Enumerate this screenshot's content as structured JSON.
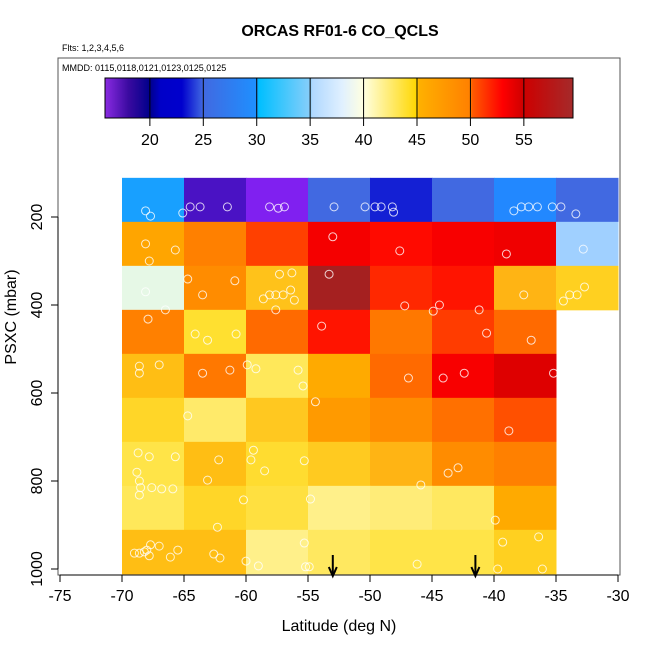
{
  "chart_data": {
    "type": "heatmap",
    "title": "ORCAS RF01-6 CO_QCLS",
    "subtitle_flights": "Flts: 1,2,3,4,5,6",
    "subtitle_dates": "MMDD: 0115,0118,0121,0123,0125,0125",
    "xlabel": "Latitude (deg N)",
    "ylabel": "PSXC (mbar)",
    "xlim": [
      -75,
      -30
    ],
    "ylim": [
      1013,
      -162
    ],
    "xticks": [
      "-75",
      "-70",
      "-65",
      "-60",
      "-55",
      "-50",
      "-45",
      "-40",
      "-35",
      "-30"
    ],
    "xtick_values": [
      -75,
      -70,
      -65,
      -60,
      -55,
      -50,
      -45,
      -40,
      -35,
      -30
    ],
    "yticks": [
      "200",
      "400",
      "600",
      "800",
      "1000"
    ],
    "ytick_values": [
      200,
      400,
      600,
      800,
      1000
    ],
    "lat_edges": [
      -70,
      -65,
      -60,
      -55,
      -50,
      -45,
      -40,
      -35,
      -30
    ],
    "p_edges": [
      111,
      211,
      311,
      411,
      511,
      611,
      711,
      811,
      911,
      1011
    ],
    "values": [
      [
        30,
        18,
        16,
        25,
        22,
        25,
        29,
        25
      ],
      [
        45.5,
        49,
        51,
        53.5,
        53,
        53.5,
        54,
        36
      ],
      [
        39,
        48,
        45.5,
        59,
        52,
        52.5,
        46,
        44.5
      ],
      [
        49,
        43.5,
        50,
        52.5,
        49.5,
        51.5,
        50,
        null
      ],
      [
        46,
        49.5,
        42.5,
        47,
        50,
        53.5,
        55.5,
        null
      ],
      [
        44.5,
        42,
        45.2,
        48,
        48.5,
        49.7,
        50.8,
        null
      ],
      [
        43.5,
        46,
        44,
        45,
        46.5,
        48.5,
        49,
        null
      ],
      [
        43,
        44.5,
        43.5,
        41.5,
        42,
        42.5,
        47,
        null
      ],
      [
        46,
        46,
        41.5,
        42.5,
        43,
        43,
        44.5,
        null
      ]
    ],
    "cell_colors": [
      [
        "#18a0ff",
        "#4a12c4",
        "#8020f0",
        "#4169e1",
        "#1420d4",
        "#4169e1",
        "#2288ff",
        "#4169e1"
      ],
      [
        "#ffa500",
        "#ff8000",
        "#ff4000",
        "#f50000",
        "#ff0a00",
        "#f80000",
        "#f00000",
        "#a0d0ff"
      ],
      [
        "#e6f8e6",
        "#ff8c00",
        "#ffc21a",
        "#a52020",
        "#ff2800",
        "#ff1400",
        "#ffb414",
        "#ffd020"
      ],
      [
        "#ff8000",
        "#ffe030",
        "#ff6a00",
        "#ff1400",
        "#ff7800",
        "#ff3c00",
        "#ff6a00",
        null
      ],
      [
        "#ffbe14",
        "#ff7800",
        "#ffe85a",
        "#ffaa00",
        "#ff6a00",
        "#f80000",
        "#de0000",
        null
      ],
      [
        "#ffd628",
        "#ffea6a",
        "#ffc820",
        "#ff9a00",
        "#ff8c00",
        "#ff7000",
        "#ff5000",
        null
      ],
      [
        "#ffe448",
        "#ffbe14",
        "#ffdc30",
        "#ffca20",
        "#ffb414",
        "#ff8c00",
        "#ff8000",
        null
      ],
      [
        "#ffe85a",
        "#ffd628",
        "#ffe040",
        "#fff08a",
        "#ffec78",
        "#ffe860",
        "#ffaa00",
        null
      ],
      [
        "#ffbe14",
        "#ffbe14",
        "#fff08a",
        "#ffe860",
        "#ffe448",
        "#ffe448",
        "#ffd020",
        null
      ]
    ],
    "colorbar": {
      "range": [
        15.8,
        59.6
      ],
      "ticks": [
        "20",
        "25",
        "30",
        "35",
        "40",
        "45",
        "50",
        "55"
      ],
      "tick_values": [
        20,
        25,
        30,
        35,
        40,
        45,
        50,
        55
      ],
      "stops": [
        [
          15.8,
          "#8a2be2"
        ],
        [
          18,
          "#3a0aa0"
        ],
        [
          20,
          "#00008b"
        ],
        [
          21,
          "#0000c8"
        ],
        [
          23,
          "#0000cd"
        ],
        [
          25,
          "#4169e1"
        ],
        [
          30,
          "#1e90ff"
        ],
        [
          30.2,
          "#00bfff"
        ],
        [
          35,
          "#87cefa"
        ],
        [
          35.2,
          "#b0d8ff"
        ],
        [
          38,
          "#e0f0ff"
        ],
        [
          40,
          "#ffffe0"
        ],
        [
          45,
          "#ffd700"
        ],
        [
          45.2,
          "#ffb000"
        ],
        [
          50,
          "#ff8000"
        ],
        [
          50.2,
          "#ff5a00"
        ],
        [
          53,
          "#ff0000"
        ],
        [
          55,
          "#cd0000"
        ],
        [
          59.6,
          "#a52a2a"
        ]
      ]
    },
    "points": [
      [
        -68.1,
        186
      ],
      [
        -67.7,
        198
      ],
      [
        -65.1,
        191
      ],
      [
        -64.5,
        177
      ],
      [
        -63.7,
        177
      ],
      [
        -61.5,
        177
      ],
      [
        -58.1,
        177
      ],
      [
        -57.4,
        180
      ],
      [
        -56.9,
        177
      ],
      [
        -52.9,
        177
      ],
      [
        -50.4,
        177
      ],
      [
        -49.6,
        177
      ],
      [
        -49.1,
        177
      ],
      [
        -48.2,
        177
      ],
      [
        -48.1,
        189
      ],
      [
        -38.4,
        186
      ],
      [
        -37.8,
        177
      ],
      [
        -37.2,
        177
      ],
      [
        -36.5,
        177
      ],
      [
        -35.3,
        177
      ],
      [
        -34.6,
        177
      ],
      [
        -33.4,
        193
      ],
      [
        -68.1,
        261
      ],
      [
        -65.7,
        275
      ],
      [
        -67.8,
        300
      ],
      [
        -53.0,
        245
      ],
      [
        -47.6,
        277
      ],
      [
        -39.0,
        284
      ],
      [
        -32.8,
        273
      ],
      [
        -64.7,
        341
      ],
      [
        -60.9,
        345
      ],
      [
        -63.5,
        377
      ],
      [
        -57.3,
        330
      ],
      [
        -56.3,
        327
      ],
      [
        -58.6,
        386
      ],
      [
        -58.1,
        377
      ],
      [
        -57.6,
        377
      ],
      [
        -57.0,
        377
      ],
      [
        -56.4,
        366
      ],
      [
        -56.1,
        389
      ],
      [
        -57.6,
        411
      ],
      [
        -53.3,
        330
      ],
      [
        -47.2,
        402
      ],
      [
        -44.9,
        414
      ],
      [
        -44.4,
        400
      ],
      [
        -41.2,
        411
      ],
      [
        -37.6,
        377
      ],
      [
        -34.4,
        391
      ],
      [
        -33.9,
        377
      ],
      [
        -33.3,
        377
      ],
      [
        -32.7,
        359
      ],
      [
        -68.1,
        370
      ],
      [
        -66.5,
        411
      ],
      [
        -67.9,
        432
      ],
      [
        -64.1,
        466
      ],
      [
        -63.1,
        480
      ],
      [
        -60.8,
        466
      ],
      [
        -53.9,
        448
      ],
      [
        -40.6,
        464
      ],
      [
        -37.0,
        480
      ],
      [
        -68.6,
        539
      ],
      [
        -68.6,
        555
      ],
      [
        -67.0,
        536
      ],
      [
        -63.5,
        555
      ],
      [
        -61.3,
        548
      ],
      [
        -59.9,
        536
      ],
      [
        -59.2,
        545
      ],
      [
        -55.8,
        548
      ],
      [
        -55.4,
        584
      ],
      [
        -46.9,
        566
      ],
      [
        -44.1,
        566
      ],
      [
        -42.4,
        555
      ],
      [
        -35.2,
        555
      ],
      [
        -64.7,
        652
      ],
      [
        -54.4,
        620
      ],
      [
        -38.8,
        686
      ],
      [
        -68.7,
        736
      ],
      [
        -67.8,
        745
      ],
      [
        -65.7,
        745
      ],
      [
        -68.8,
        780
      ],
      [
        -68.6,
        800
      ],
      [
        -68.5,
        815
      ],
      [
        -67.6,
        815
      ],
      [
        -66.8,
        818
      ],
      [
        -65.9,
        818
      ],
      [
        -68.6,
        832
      ],
      [
        -62.2,
        752
      ],
      [
        -63.1,
        798
      ],
      [
        -59.4,
        730
      ],
      [
        -59.6,
        752
      ],
      [
        -58.5,
        777
      ],
      [
        -55.3,
        754
      ],
      [
        -45.9,
        809
      ],
      [
        -43.7,
        782
      ],
      [
        -42.9,
        770
      ],
      [
        -60.2,
        843
      ],
      [
        -62.3,
        905
      ],
      [
        -54.8,
        841
      ],
      [
        -39.9,
        889
      ],
      [
        -67.7,
        945
      ],
      [
        -67.0,
        948
      ],
      [
        -69.0,
        964
      ],
      [
        -68.6,
        964
      ],
      [
        -68.2,
        961
      ],
      [
        -68.0,
        957
      ],
      [
        -67.8,
        970
      ],
      [
        -65.5,
        957
      ],
      [
        -66.1,
        973
      ],
      [
        -62.6,
        966
      ],
      [
        -62.1,
        975
      ],
      [
        -60.0,
        982
      ],
      [
        -59.0,
        993
      ],
      [
        -55.3,
        941
      ],
      [
        -55.2,
        995
      ],
      [
        -54.9,
        995
      ],
      [
        -46.2,
        989
      ],
      [
        -39.7,
        1000
      ],
      [
        -39.3,
        939
      ],
      [
        -36.4,
        927
      ],
      [
        -36.1,
        1000
      ]
    ],
    "arrows_lat": [
      -53,
      -41.5
    ]
  }
}
